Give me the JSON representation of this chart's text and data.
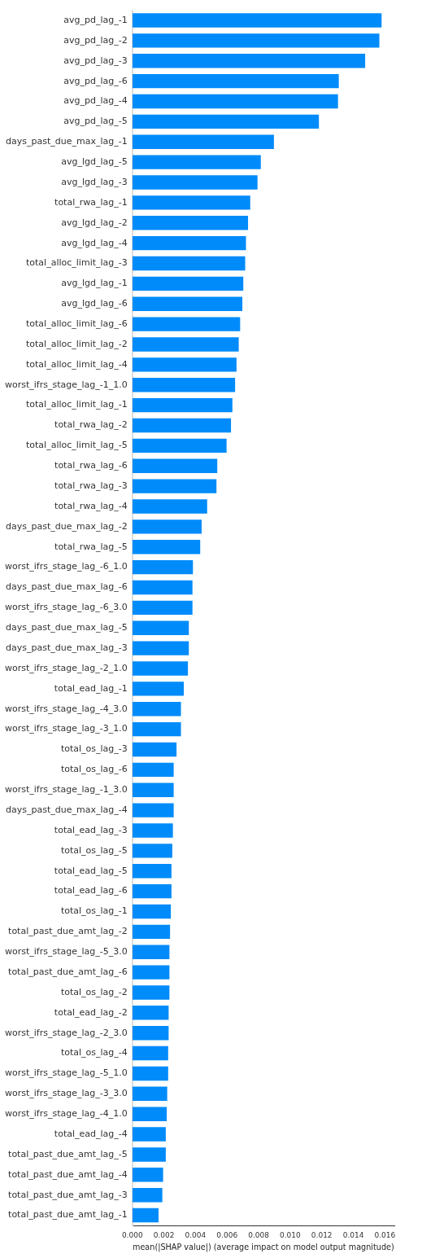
{
  "chart_data": {
    "type": "bar",
    "orientation": "horizontal",
    "xlabel": "mean(|SHAP value|) (average impact on model output magnitude)",
    "categories": [
      "avg_pd_lag_-1",
      "avg_pd_lag_-2",
      "avg_pd_lag_-3",
      "avg_pd_lag_-6",
      "avg_pd_lag_-4",
      "avg_pd_lag_-5",
      "days_past_due_max_lag_-1",
      "avg_lgd_lag_-5",
      "avg_lgd_lag_-3",
      "total_rwa_lag_-1",
      "avg_lgd_lag_-2",
      "avg_lgd_lag_-4",
      "total_alloc_limit_lag_-3",
      "avg_lgd_lag_-1",
      "avg_lgd_lag_-6",
      "total_alloc_limit_lag_-6",
      "total_alloc_limit_lag_-2",
      "total_alloc_limit_lag_-4",
      "worst_ifrs_stage_lag_-1_1.0",
      "total_alloc_limit_lag_-1",
      "total_rwa_lag_-2",
      "total_alloc_limit_lag_-5",
      "total_rwa_lag_-6",
      "total_rwa_lag_-3",
      "total_rwa_lag_-4",
      "days_past_due_max_lag_-2",
      "total_rwa_lag_-5",
      "worst_ifrs_stage_lag_-6_1.0",
      "days_past_due_max_lag_-6",
      "worst_ifrs_stage_lag_-6_3.0",
      "days_past_due_max_lag_-5",
      "days_past_due_max_lag_-3",
      "worst_ifrs_stage_lag_-2_1.0",
      "total_ead_lag_-1",
      "worst_ifrs_stage_lag_-4_3.0",
      "worst_ifrs_stage_lag_-3_1.0",
      "total_os_lag_-3",
      "total_os_lag_-6",
      "worst_ifrs_stage_lag_-1_3.0",
      "days_past_due_max_lag_-4",
      "total_ead_lag_-3",
      "total_os_lag_-5",
      "total_ead_lag_-5",
      "total_ead_lag_-6",
      "total_os_lag_-1",
      "total_past_due_amt_lag_-2",
      "worst_ifrs_stage_lag_-5_3.0",
      "total_past_due_amt_lag_-6",
      "total_os_lag_-2",
      "total_ead_lag_-2",
      "worst_ifrs_stage_lag_-2_3.0",
      "total_os_lag_-4",
      "worst_ifrs_stage_lag_-5_1.0",
      "worst_ifrs_stage_lag_-3_3.0",
      "worst_ifrs_stage_lag_-4_1.0",
      "total_ead_lag_-4",
      "total_past_due_amt_lag_-5",
      "total_past_due_amt_lag_-4",
      "total_past_due_amt_lag_-3",
      "total_past_due_amt_lag_-1"
    ],
    "values": [
      0.01579,
      0.01565,
      0.01475,
      0.01308,
      0.01303,
      0.01182,
      0.00897,
      0.00814,
      0.00793,
      0.00747,
      0.00733,
      0.0072,
      0.00715,
      0.00703,
      0.00697,
      0.00683,
      0.00674,
      0.0066,
      0.00651,
      0.00634,
      0.00625,
      0.00597,
      0.00538,
      0.00533,
      0.00474,
      0.00439,
      0.0043,
      0.00384,
      0.00381,
      0.00381,
      0.00358,
      0.00358,
      0.00352,
      0.00326,
      0.00308,
      0.00308,
      0.0028,
      0.00262,
      0.00262,
      0.00262,
      0.00257,
      0.00253,
      0.00248,
      0.00248,
      0.00244,
      0.00239,
      0.00235,
      0.00235,
      0.00235,
      0.0023,
      0.0023,
      0.00227,
      0.00227,
      0.00221,
      0.00218,
      0.00212,
      0.00212,
      0.00195,
      0.0019,
      0.00166
    ],
    "color": "#008bfb",
    "xlim": [
      0,
      0.0166
    ],
    "xticks": [
      {
        "value": 0,
        "label": "0.000"
      },
      {
        "value": 0.002,
        "label": "0.002"
      },
      {
        "value": 0.004,
        "label": "0.004"
      },
      {
        "value": 0.006,
        "label": "0.006"
      },
      {
        "value": 0.008,
        "label": "0.008"
      },
      {
        "value": 0.01,
        "label": "0.010"
      },
      {
        "value": 0.012,
        "label": "0.012"
      },
      {
        "value": 0.014,
        "label": "0.014"
      },
      {
        "value": 0.016,
        "label": "0.016"
      }
    ],
    "grid": false,
    "legend": false
  }
}
